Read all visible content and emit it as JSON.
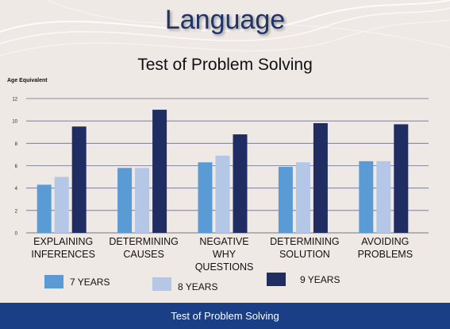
{
  "slide": {
    "title": "Language",
    "footer": "Test of Problem Solving"
  },
  "chart_data": {
    "type": "bar",
    "title": "Test of Problem Solving",
    "ylabel": "Age Equivalent",
    "xlabel": "",
    "ylim": [
      0,
      12
    ],
    "yticks": [
      0,
      2,
      4,
      6,
      8,
      10,
      12
    ],
    "grid": true,
    "legend_position": "bottom",
    "categories": [
      [
        "EXPLAINING",
        "INFERENCES"
      ],
      [
        "DETERMINING",
        "CAUSES"
      ],
      [
        "NEGATIVE",
        "WHY",
        "QUESTIONS"
      ],
      [
        "DETERMINING",
        "SOLUTION"
      ],
      [
        "AVOIDING",
        "PROBLEMS"
      ]
    ],
    "series": [
      {
        "name": "7 YEARS",
        "color": "#5b9bd5",
        "values": [
          4.3,
          5.8,
          6.3,
          5.9,
          6.4
        ]
      },
      {
        "name": "8 YEARS",
        "color": "#b4c7e7",
        "values": [
          5.0,
          5.8,
          6.9,
          6.3,
          6.4
        ]
      },
      {
        "name": "9 YEARS",
        "color": "#1f2d63",
        "values": [
          9.5,
          11.0,
          8.8,
          9.8,
          9.7
        ]
      }
    ]
  }
}
